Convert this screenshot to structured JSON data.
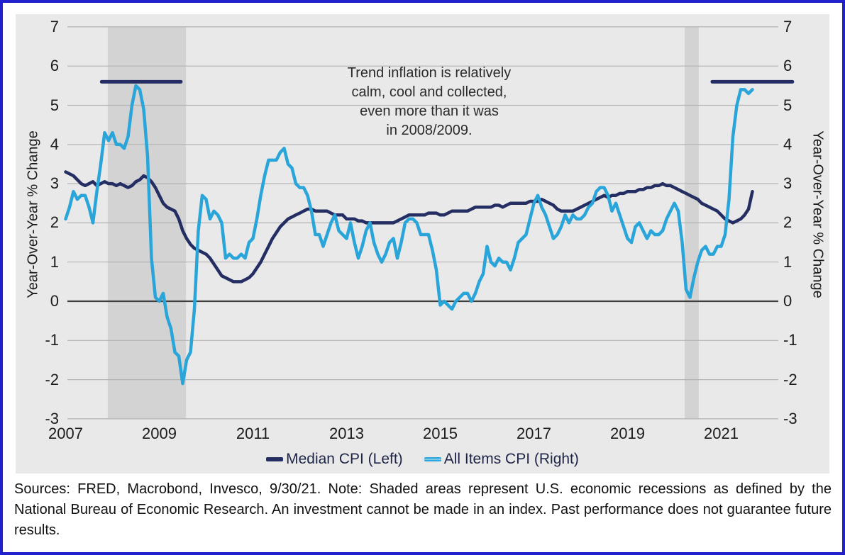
{
  "colors": {
    "frame_border": "#2020cc",
    "panel_background": "#e9e9e9",
    "recession_band": "#d3d3d3",
    "gridline": "#b3b3b3",
    "zero_line": "#3f3f3f",
    "median_cpi": "#242e63",
    "all_items_cpi": "#29a5d9"
  },
  "chart_data": {
    "type": "line",
    "title": "",
    "annotation": "Trend inflation is relatively\ncalm, cool and collected,\neven more than it was\nin 2008/2009.",
    "left_axis_label": "Year-Over-Year % Change",
    "right_axis_label": "Year-Over-Year % Change",
    "ylim": [
      -3,
      7
    ],
    "yticks": [
      7,
      6,
      5,
      4,
      3,
      2,
      1,
      0,
      -1,
      -2,
      -3
    ],
    "xticks": [
      2007,
      2009,
      2011,
      2013,
      2015,
      2017,
      2019,
      2021
    ],
    "x_start_year": 2007,
    "x_interval": "monthly",
    "x_end_label": "Sep 2021",
    "grid": true,
    "legend_position": "bottom",
    "recession_bands": [
      {
        "from": 2007.9,
        "to": 2009.57
      },
      {
        "from": 2020.22,
        "to": 2020.52
      }
    ],
    "reference_lines": [
      {
        "value": 5.6,
        "x_from": 2007.77,
        "x_to": 2009.46
      },
      {
        "value": 5.6,
        "x_from": 2020.81,
        "x_to": 2022.52
      }
    ],
    "series": [
      {
        "name": "Median CPI (Left)",
        "axis": "left",
        "color": "#242e63",
        "values": [
          3.3,
          3.25,
          3.2,
          3.1,
          3.0,
          2.95,
          3.0,
          3.05,
          2.95,
          3.0,
          3.05,
          3.0,
          3.0,
          2.95,
          3.0,
          2.95,
          2.9,
          2.95,
          3.05,
          3.1,
          3.2,
          3.15,
          3.05,
          2.9,
          2.7,
          2.5,
          2.4,
          2.35,
          2.3,
          2.1,
          1.8,
          1.6,
          1.45,
          1.35,
          1.3,
          1.25,
          1.2,
          1.1,
          0.95,
          0.8,
          0.65,
          0.6,
          0.55,
          0.5,
          0.5,
          0.5,
          0.55,
          0.6,
          0.7,
          0.85,
          1.0,
          1.2,
          1.4,
          1.6,
          1.75,
          1.9,
          2.0,
          2.1,
          2.15,
          2.2,
          2.25,
          2.3,
          2.35,
          2.35,
          2.3,
          2.3,
          2.3,
          2.3,
          2.25,
          2.2,
          2.2,
          2.2,
          2.1,
          2.1,
          2.1,
          2.05,
          2.05,
          2.0,
          2.0,
          2.0,
          2.0,
          2.0,
          2.0,
          2.0,
          2.0,
          2.05,
          2.1,
          2.15,
          2.2,
          2.2,
          2.2,
          2.2,
          2.2,
          2.25,
          2.25,
          2.25,
          2.2,
          2.2,
          2.25,
          2.3,
          2.3,
          2.3,
          2.3,
          2.3,
          2.35,
          2.4,
          2.4,
          2.4,
          2.4,
          2.4,
          2.45,
          2.45,
          2.4,
          2.45,
          2.5,
          2.5,
          2.5,
          2.5,
          2.5,
          2.55,
          2.55,
          2.55,
          2.6,
          2.55,
          2.5,
          2.45,
          2.35,
          2.3,
          2.3,
          2.3,
          2.3,
          2.35,
          2.4,
          2.45,
          2.5,
          2.55,
          2.6,
          2.65,
          2.7,
          2.65,
          2.7,
          2.7,
          2.75,
          2.75,
          2.8,
          2.8,
          2.8,
          2.85,
          2.85,
          2.9,
          2.9,
          2.95,
          2.95,
          3.0,
          2.95,
          2.95,
          2.9,
          2.85,
          2.8,
          2.75,
          2.7,
          2.65,
          2.6,
          2.5,
          2.45,
          2.4,
          2.35,
          2.3,
          2.2,
          2.1,
          2.05,
          2.0,
          2.05,
          2.1,
          2.2,
          2.35,
          2.8
        ]
      },
      {
        "name": "All Items CPI (Right)",
        "axis": "right",
        "color": "#29a5d9",
        "values": [
          2.1,
          2.4,
          2.8,
          2.6,
          2.7,
          2.7,
          2.4,
          2.0,
          2.8,
          3.5,
          4.3,
          4.1,
          4.3,
          4.0,
          4.0,
          3.9,
          4.2,
          5.0,
          5.5,
          5.4,
          4.9,
          3.7,
          1.1,
          0.1,
          0.0,
          0.2,
          -0.4,
          -0.7,
          -1.3,
          -1.4,
          -2.1,
          -1.5,
          -1.3,
          -0.2,
          1.8,
          2.7,
          2.6,
          2.1,
          2.3,
          2.2,
          2.0,
          1.1,
          1.2,
          1.1,
          1.1,
          1.2,
          1.1,
          1.5,
          1.6,
          2.1,
          2.7,
          3.2,
          3.6,
          3.6,
          3.6,
          3.8,
          3.9,
          3.5,
          3.4,
          3.0,
          2.9,
          2.9,
          2.7,
          2.3,
          1.7,
          1.7,
          1.4,
          1.7,
          2.0,
          2.2,
          1.8,
          1.7,
          1.6,
          2.0,
          1.5,
          1.1,
          1.4,
          1.8,
          2.0,
          1.5,
          1.2,
          1.0,
          1.2,
          1.5,
          1.6,
          1.1,
          1.5,
          2.0,
          2.1,
          2.1,
          2.0,
          1.7,
          1.7,
          1.7,
          1.3,
          0.8,
          -0.1,
          0.0,
          -0.1,
          -0.2,
          0.0,
          0.1,
          0.2,
          0.2,
          0.0,
          0.2,
          0.5,
          0.7,
          1.4,
          1.0,
          0.9,
          1.1,
          1.0,
          1.0,
          0.8,
          1.1,
          1.5,
          1.6,
          1.7,
          2.1,
          2.5,
          2.7,
          2.4,
          2.2,
          1.9,
          1.6,
          1.7,
          1.9,
          2.2,
          2.0,
          2.2,
          2.1,
          2.1,
          2.2,
          2.4,
          2.5,
          2.8,
          2.9,
          2.9,
          2.7,
          2.3,
          2.5,
          2.2,
          1.9,
          1.6,
          1.5,
          1.9,
          2.0,
          1.8,
          1.6,
          1.8,
          1.7,
          1.7,
          1.8,
          2.1,
          2.3,
          2.5,
          2.3,
          1.5,
          0.3,
          0.1,
          0.6,
          1.0,
          1.3,
          1.4,
          1.2,
          1.2,
          1.4,
          1.4,
          1.7,
          2.6,
          4.2,
          5.0,
          5.4,
          5.4,
          5.3,
          5.4
        ]
      }
    ]
  },
  "footnote": {
    "text": "Sources: FRED, Macrobond, Invesco, 9/30/21. Note: Shaded areas represent U.S. economic recessions as defined by the National Bureau of Economic Research. An investment cannot be made in an index. Past performance does not guarantee future results."
  }
}
